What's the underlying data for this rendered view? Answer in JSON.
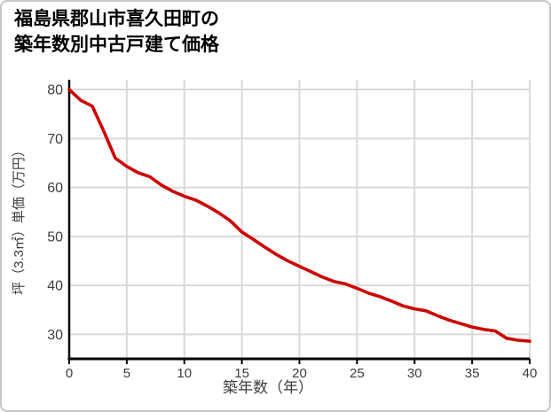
{
  "card": {
    "title_line1": "福島県郡山市喜久田町の",
    "title_line2": "築年数別中古戸建て価格"
  },
  "colors": {
    "line": "#cc0000",
    "grid": "#d9d9d9",
    "axis": "#000000",
    "tick_label": "#3c3c3c",
    "axis_label": "#3c3c3c",
    "title": "#000000",
    "border": "#c6c6c6",
    "background": "#ffffff"
  },
  "chart_data": {
    "type": "line",
    "title": "福島県郡山市喜久田町の築年数別中古戸建て価格",
    "xlabel": "築年数（年）",
    "ylabel": "坪（3.3㎡）単価（万円）",
    "xlim": [
      0,
      40
    ],
    "ylim": [
      25,
      82
    ],
    "x_ticks": [
      0,
      5,
      10,
      15,
      20,
      25,
      30,
      35,
      40
    ],
    "y_ticks": [
      30,
      40,
      50,
      60,
      70,
      80
    ],
    "grid": true,
    "legend": "none",
    "x": [
      0,
      1,
      2,
      3,
      4,
      5,
      6,
      7,
      8,
      9,
      10,
      11,
      12,
      13,
      14,
      15,
      16,
      17,
      18,
      19,
      20,
      21,
      22,
      23,
      24,
      25,
      26,
      27,
      28,
      29,
      30,
      31,
      32,
      33,
      34,
      35,
      36,
      37,
      38,
      39,
      40
    ],
    "series": [
      {
        "name": "坪単価（万円）",
        "values": [
          80.0,
          77.8,
          76.6,
          71.5,
          66.0,
          64.3,
          63.0,
          62.2,
          60.5,
          59.2,
          58.2,
          57.4,
          56.2,
          54.8,
          53.2,
          50.9,
          49.4,
          47.8,
          46.3,
          45.0,
          43.9,
          42.8,
          41.7,
          40.8,
          40.3,
          39.4,
          38.4,
          37.7,
          36.8,
          35.8,
          35.2,
          34.8,
          33.8,
          32.9,
          32.2,
          31.5,
          31.0,
          30.7,
          29.2,
          28.8,
          28.6
        ]
      }
    ]
  }
}
